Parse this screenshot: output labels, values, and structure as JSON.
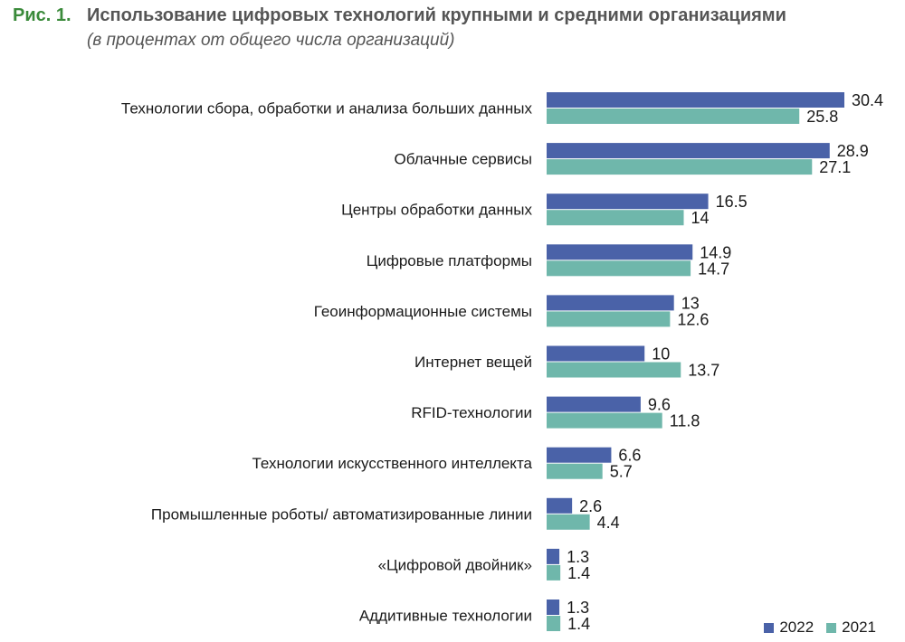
{
  "figure": {
    "number": "Рис. 1.",
    "title": "Использование цифровых технологий крупными и средними организациями",
    "subtitle": "(в процентах от общего числа организаций)"
  },
  "chart_data": {
    "type": "bar",
    "orientation": "horizontal",
    "categories": [
      "Технологии сбора, обработки и анализа больших данных",
      "Облачные сервисы",
      "Центры обработки данных",
      "Цифровые платформы",
      "Геоинформационные системы",
      "Интернет вещей",
      "RFID-технологии",
      "Технологии искусственного интеллекта",
      "Промышленные роботы/ автоматизированные линии",
      "«Цифровой двойник»",
      "Аддитивные технологии"
    ],
    "series": [
      {
        "name": "2022",
        "color": "#4a62a8",
        "values": [
          30.4,
          28.9,
          16.5,
          14.9,
          13,
          10,
          9.6,
          6.6,
          2.6,
          1.3,
          1.3
        ],
        "labels": [
          "30.4",
          "28.9",
          "16.5",
          "14.9",
          "13",
          "10",
          "9.6",
          "6.6",
          "2.6",
          "1.3",
          "1.3"
        ]
      },
      {
        "name": "2021",
        "color": "#6fb7ab",
        "values": [
          25.8,
          27.1,
          14,
          14.7,
          12.6,
          13.7,
          11.8,
          5.7,
          4.4,
          1.4,
          1.4
        ],
        "labels": [
          "25.8",
          "27.1",
          "14",
          "14.7",
          "12.6",
          "13.7",
          "11.8",
          "5.7",
          "4.4",
          "1.4",
          "1.4"
        ]
      }
    ],
    "xlim": [
      0,
      30.4
    ],
    "grid": false,
    "legend_position": "bottom-right"
  }
}
